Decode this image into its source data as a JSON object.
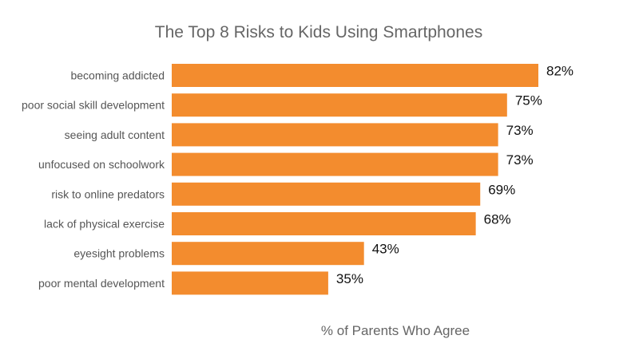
{
  "chart_data": {
    "type": "bar",
    "orientation": "horizontal",
    "title": "The Top 8 Risks to Kids Using Smartphones",
    "xlabel": "% of Parents Who Agree",
    "ylabel": "",
    "categories": [
      "becoming addicted",
      "poor social skill development",
      "seeing adult content",
      "unfocused on schoolwork",
      "risk to online predators",
      "lack of physical exercise",
      "eyesight problems",
      "poor mental development"
    ],
    "values": [
      82,
      75,
      73,
      73,
      69,
      68,
      43,
      35
    ],
    "value_labels": [
      "82%",
      "75%",
      "73%",
      "73%",
      "69%",
      "68%",
      "43%",
      "35%"
    ],
    "xlim": [
      0,
      82
    ],
    "grid": false,
    "legend": "none",
    "colors": {
      "bar": "#F38C2E"
    }
  }
}
